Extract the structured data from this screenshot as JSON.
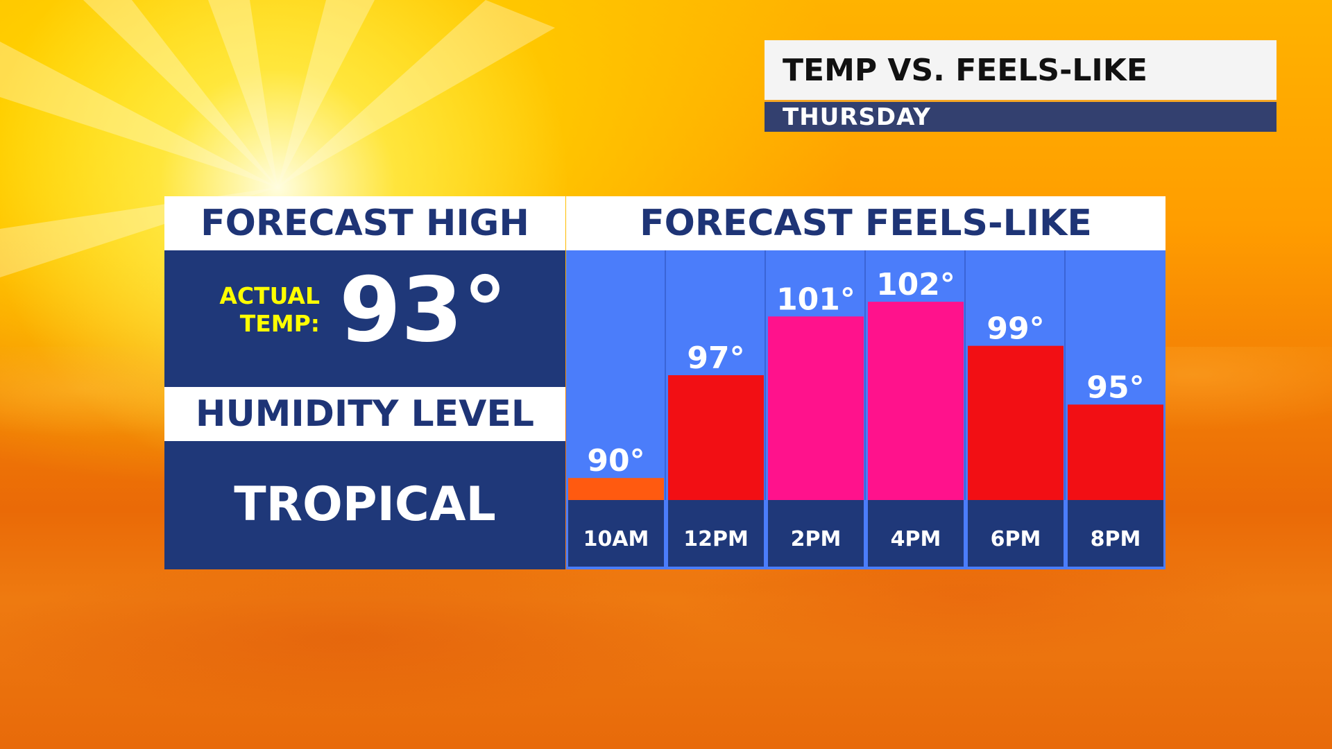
{
  "title": {
    "main": "TEMP VS. FEELS-LIKE",
    "subtitle": "THURSDAY"
  },
  "left_panel": {
    "high_header": "FORECAST HIGH",
    "actual_label_line1": "ACTUAL",
    "actual_label_line2": "TEMP:",
    "actual_temp": "93°",
    "humidity_header": "HUMIDITY LEVEL",
    "humidity_value": "TROPICAL"
  },
  "right_panel": {
    "header": "FORECAST FEELS-LIKE"
  },
  "colors": {
    "navy": "#1f3879",
    "chart_bg": "#4b7dfa",
    "label_yellow": "#ffff00",
    "bar_orange": "#ff5a10",
    "bar_red": "#f20f14",
    "bar_pink": "#ff128c"
  },
  "chart_data": {
    "type": "bar",
    "title": "FORECAST FEELS-LIKE",
    "categories": [
      "10AM",
      "12PM",
      "2PM",
      "4PM",
      "6PM",
      "8PM"
    ],
    "values": [
      90,
      97,
      101,
      102,
      99,
      95
    ],
    "value_labels": [
      "90°",
      "97°",
      "101°",
      "102°",
      "99°",
      "95°"
    ],
    "bar_colors": [
      "#ff5a10",
      "#f20f14",
      "#ff128c",
      "#ff128c",
      "#f20f14",
      "#f20f14"
    ],
    "ylim": [
      88.5,
      105.5
    ],
    "unit": "°",
    "grid": false,
    "legend": "none"
  }
}
